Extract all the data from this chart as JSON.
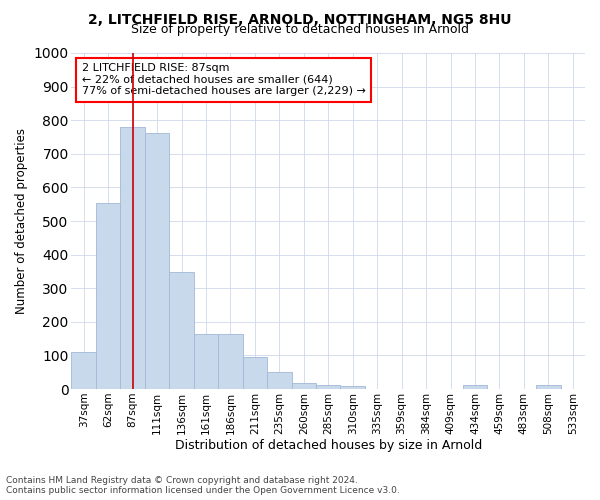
{
  "title_line1": "2, LITCHFIELD RISE, ARNOLD, NOTTINGHAM, NG5 8HU",
  "title_line2": "Size of property relative to detached houses in Arnold",
  "xlabel": "Distribution of detached houses by size in Arnold",
  "ylabel": "Number of detached properties",
  "bar_color": "#c8d9ec",
  "bar_edge_color": "#a0b8d8",
  "vline_color": "#cc0000",
  "annotation_text": "2 LITCHFIELD RISE: 87sqm\n← 22% of detached houses are smaller (644)\n77% of semi-detached houses are larger (2,229) →",
  "categories": [
    "37sqm",
    "62sqm",
    "87sqm",
    "111sqm",
    "136sqm",
    "161sqm",
    "186sqm",
    "211sqm",
    "235sqm",
    "260sqm",
    "285sqm",
    "310sqm",
    "335sqm",
    "359sqm",
    "384sqm",
    "409sqm",
    "434sqm",
    "459sqm",
    "483sqm",
    "508sqm",
    "533sqm"
  ],
  "values": [
    110,
    553,
    780,
    762,
    348,
    163,
    163,
    96,
    50,
    18,
    13,
    10,
    0,
    0,
    0,
    0,
    13,
    0,
    0,
    13,
    0
  ],
  "ylim": [
    0,
    1000
  ],
  "yticks": [
    0,
    100,
    200,
    300,
    400,
    500,
    600,
    700,
    800,
    900,
    1000
  ],
  "vline_index": 2,
  "footer_line1": "Contains HM Land Registry data © Crown copyright and database right 2024.",
  "footer_line2": "Contains public sector information licensed under the Open Government Licence v3.0.",
  "background_color": "#ffffff",
  "grid_color": "#cdd8ea"
}
